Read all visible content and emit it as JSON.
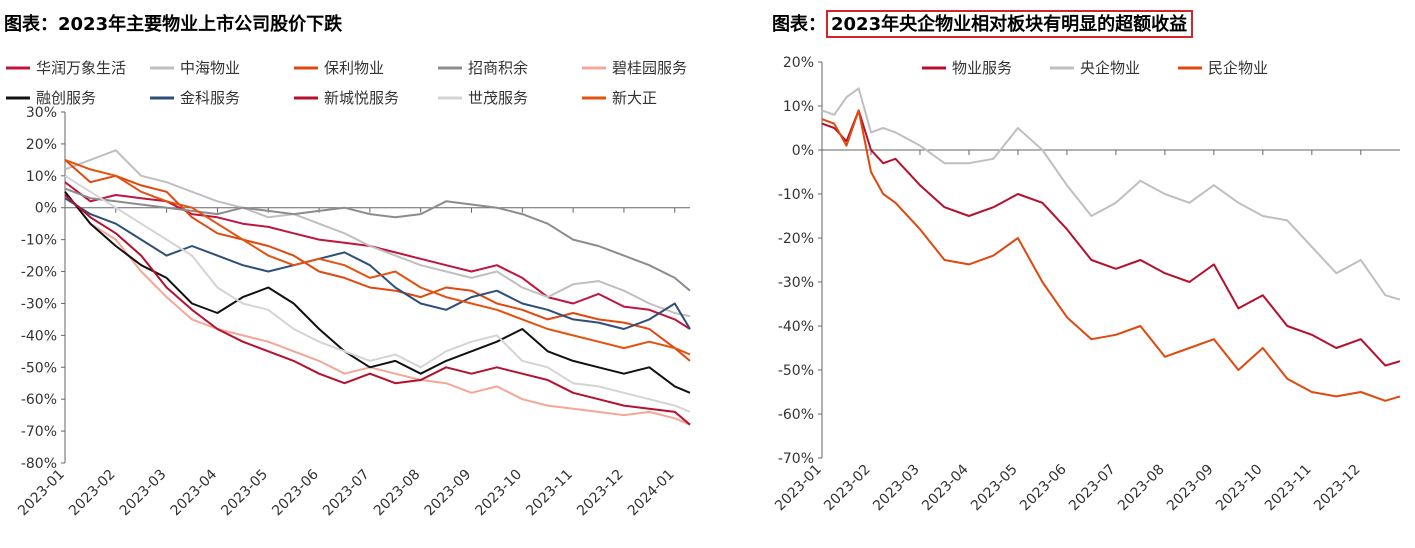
{
  "left": {
    "title_prefix": "图表：",
    "title_main": "2023年主要物业上市公司股价下跌",
    "chart_data": {
      "type": "line",
      "ylim": [
        -80,
        30
      ],
      "yticks": [
        30,
        20,
        10,
        0,
        -10,
        -20,
        -30,
        -40,
        -50,
        -60,
        -70,
        -80
      ],
      "ytick_labels": [
        "30%",
        "20%",
        "10%",
        "0%",
        "-10%",
        "-20%",
        "-30%",
        "-40%",
        "-50%",
        "-60%",
        "-70%",
        "-80%"
      ],
      "xlim": [
        0,
        12.3
      ],
      "xticks": [
        0,
        1,
        2,
        3,
        4,
        5,
        6,
        7,
        8,
        9,
        10,
        11,
        12
      ],
      "xtick_labels": [
        "2023-01",
        "2023-02",
        "2023-03",
        "2023-04",
        "2023-05",
        "2023-06",
        "2023-07",
        "2023-08",
        "2023-09",
        "2023-10",
        "2023-11",
        "2023-12",
        "2024-01"
      ],
      "legend_position": "top",
      "x": [
        0,
        0.5,
        1,
        1.5,
        2,
        2.5,
        3,
        3.5,
        4,
        4.5,
        5,
        5.5,
        6,
        6.5,
        7,
        7.5,
        8,
        8.5,
        9,
        9.5,
        10,
        10.5,
        11,
        11.5,
        12,
        12.3
      ],
      "series": [
        {
          "name": "华润万象生活",
          "color": "#c0143c",
          "values": [
            8,
            2,
            4,
            3,
            2,
            -2,
            -3,
            -5,
            -6,
            -8,
            -10,
            -11,
            -12,
            -14,
            -16,
            -18,
            -20,
            -18,
            -22,
            -28,
            -30,
            -27,
            -31,
            -32,
            -35,
            -38
          ]
        },
        {
          "name": "中海物业",
          "color": "#bfbfbf",
          "values": [
            12,
            15,
            18,
            10,
            8,
            5,
            2,
            0,
            -3,
            -2,
            -5,
            -8,
            -12,
            -15,
            -18,
            -20,
            -22,
            -20,
            -25,
            -28,
            -24,
            -23,
            -26,
            -30,
            -33,
            -34
          ]
        },
        {
          "name": "保利物业",
          "color": "#e0480e",
          "values": [
            15,
            8,
            10,
            7,
            5,
            -3,
            -8,
            -10,
            -12,
            -15,
            -20,
            -22,
            -25,
            -26,
            -28,
            -25,
            -26,
            -30,
            -32,
            -35,
            -33,
            -35,
            -36,
            -38,
            -44,
            -48
          ]
        },
        {
          "name": "招商积余",
          "color": "#8c8c8c",
          "values": [
            6,
            3,
            2,
            1,
            0,
            -1,
            -2,
            0,
            -1,
            -2,
            -1,
            0,
            -2,
            -3,
            -2,
            2,
            1,
            0,
            -2,
            -5,
            -10,
            -12,
            -15,
            -18,
            -22,
            -26
          ]
        },
        {
          "name": "碧桂园服务",
          "color": "#f4a796",
          "values": [
            5,
            -5,
            -10,
            -20,
            -28,
            -35,
            -38,
            -40,
            -42,
            -45,
            -48,
            -52,
            -50,
            -52,
            -54,
            -55,
            -58,
            -56,
            -60,
            -62,
            -63,
            -64,
            -65,
            -64,
            -66,
            -68
          ]
        },
        {
          "name": "融创服务",
          "color": "#111111",
          "values": [
            5,
            -5,
            -12,
            -18,
            -22,
            -30,
            -33,
            -28,
            -25,
            -30,
            -38,
            -45,
            -50,
            -48,
            -52,
            -48,
            -45,
            -42,
            -38,
            -45,
            -48,
            -50,
            -52,
            -50,
            -56,
            -58
          ]
        },
        {
          "name": "金科服务",
          "color": "#2f4e78",
          "values": [
            3,
            -2,
            -5,
            -10,
            -15,
            -12,
            -15,
            -18,
            -20,
            -18,
            -16,
            -14,
            -18,
            -25,
            -30,
            -32,
            -28,
            -26,
            -30,
            -32,
            -35,
            -36,
            -38,
            -35,
            -30,
            -38
          ]
        },
        {
          "name": "新城悦服务",
          "color": "#b5102e",
          "values": [
            4,
            -3,
            -8,
            -15,
            -25,
            -32,
            -38,
            -42,
            -45,
            -48,
            -52,
            -55,
            -52,
            -55,
            -54,
            -50,
            -52,
            -50,
            -52,
            -54,
            -58,
            -60,
            -62,
            -63,
            -64,
            -68
          ]
        },
        {
          "name": "世茂服务",
          "color": "#d4d4d4",
          "values": [
            10,
            5,
            0,
            -5,
            -10,
            -15,
            -25,
            -30,
            -32,
            -38,
            -42,
            -45,
            -48,
            -46,
            -50,
            -45,
            -42,
            -40,
            -48,
            -50,
            -55,
            -56,
            -58,
            -60,
            -62,
            -64
          ]
        },
        {
          "name": "新大正",
          "color": "#e3520f",
          "values": [
            15,
            12,
            10,
            5,
            2,
            0,
            -5,
            -10,
            -15,
            -18,
            -16,
            -18,
            -22,
            -20,
            -25,
            -28,
            -30,
            -32,
            -35,
            -38,
            -40,
            -42,
            -44,
            -42,
            -44,
            -46
          ]
        }
      ]
    }
  },
  "right": {
    "title_prefix": "图表：",
    "title_main": "2023年央企物业相对板块有明显的超额收益",
    "chart_data": {
      "type": "line",
      "ylim": [
        -70,
        20
      ],
      "yticks": [
        20,
        10,
        0,
        -10,
        -20,
        -30,
        -40,
        -50,
        -60,
        -70
      ],
      "ytick_labels": [
        "20%",
        "10%",
        "0%",
        "-10%",
        "-20%",
        "-30%",
        "-40%",
        "-50%",
        "-60%",
        "-70%"
      ],
      "xlim": [
        0,
        11.8
      ],
      "xticks": [
        0,
        1,
        2,
        3,
        4,
        5,
        6,
        7,
        8,
        9,
        10,
        11
      ],
      "xtick_labels": [
        "2023-01",
        "2023-02",
        "2023-03",
        "2023-04",
        "2023-05",
        "2023-06",
        "2023-07",
        "2023-08",
        "2023-09",
        "2023-10",
        "2023-11",
        "2023-12"
      ],
      "legend_position": "top",
      "x": [
        0,
        0.25,
        0.5,
        0.75,
        1,
        1.25,
        1.5,
        2,
        2.5,
        3,
        3.5,
        4,
        4.5,
        5,
        5.5,
        6,
        6.5,
        7,
        7.5,
        8,
        8.5,
        9,
        9.5,
        10,
        10.5,
        11,
        11.5,
        11.8
      ],
      "series": [
        {
          "name": "物业服务",
          "color": "#b5102e",
          "values": [
            6,
            5,
            2,
            9,
            0,
            -3,
            -2,
            -8,
            -13,
            -15,
            -13,
            -10,
            -12,
            -18,
            -25,
            -27,
            -25,
            -28,
            -30,
            -26,
            -36,
            -33,
            -40,
            -42,
            -45,
            -43,
            -49,
            -48
          ]
        },
        {
          "name": "央企物业",
          "color": "#bfbfbf",
          "values": [
            9,
            8,
            12,
            14,
            4,
            5,
            4,
            1,
            -3,
            -3,
            -2,
            5,
            0,
            -8,
            -15,
            -12,
            -7,
            -10,
            -12,
            -8,
            -12,
            -15,
            -16,
            -22,
            -28,
            -25,
            -33,
            -34
          ]
        },
        {
          "name": "民企物业",
          "color": "#e0480e",
          "values": [
            7,
            6,
            1,
            9,
            -5,
            -10,
            -12,
            -18,
            -25,
            -26,
            -24,
            -20,
            -30,
            -38,
            -43,
            -42,
            -40,
            -47,
            -45,
            -43,
            -50,
            -45,
            -52,
            -55,
            -56,
            -55,
            -57,
            -56
          ]
        }
      ]
    }
  }
}
